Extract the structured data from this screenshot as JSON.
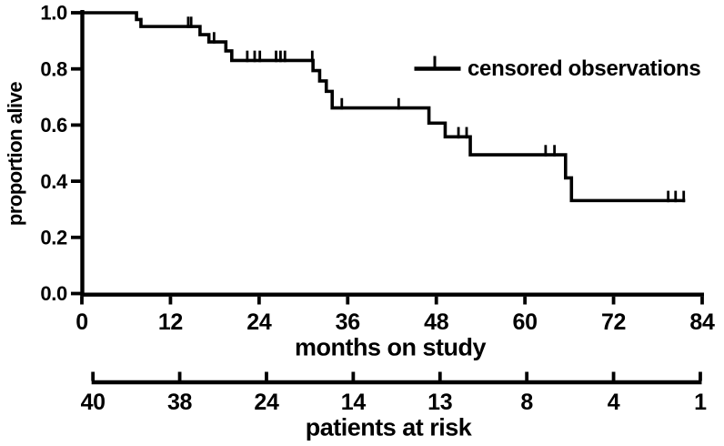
{
  "figure": {
    "background": "#ffffff",
    "ink_color": "#000000"
  },
  "chart_data": {
    "type": "line",
    "subtype": "kaplan-meier-step-curve",
    "title": "",
    "xlabel": "months on study",
    "ylabel": "proportion alive",
    "xlim": [
      0,
      84
    ],
    "ylim": [
      0.0,
      1.0
    ],
    "xticks": [
      0,
      12,
      24,
      36,
      48,
      60,
      72,
      84
    ],
    "yticks": [
      1.0,
      0.8,
      0.6,
      0.4,
      0.2,
      0.0
    ],
    "grid": false,
    "legend": {
      "position": "upper-right",
      "items": [
        {
          "label": "censored observations",
          "symbol": "censor-tick"
        }
      ]
    },
    "series": [
      {
        "name": "proportion alive",
        "color": "#000000",
        "start": [
          0,
          1.0
        ],
        "steps": [
          [
            7.4,
            0.976
          ],
          [
            8.0,
            0.951
          ],
          [
            16.0,
            0.922
          ],
          [
            17.2,
            0.896
          ],
          [
            19.5,
            0.864
          ],
          [
            20.3,
            0.83
          ],
          [
            31.3,
            0.794
          ],
          [
            32.2,
            0.757
          ],
          [
            33.1,
            0.72
          ],
          [
            33.9,
            0.661
          ],
          [
            47.0,
            0.607
          ],
          [
            49.2,
            0.558
          ],
          [
            52.6,
            0.494
          ],
          [
            65.5,
            0.412
          ],
          [
            66.3,
            0.331
          ]
        ],
        "end_month": 81.7
      }
    ],
    "censored_observations": [
      [
        14.4,
        0.951
      ],
      [
        14.8,
        0.951
      ],
      [
        17.9,
        0.896
      ],
      [
        22.4,
        0.83
      ],
      [
        23.4,
        0.83
      ],
      [
        24.1,
        0.83
      ],
      [
        26.3,
        0.83
      ],
      [
        26.9,
        0.83
      ],
      [
        27.5,
        0.83
      ],
      [
        31.2,
        0.83
      ],
      [
        35.2,
        0.661
      ],
      [
        42.9,
        0.661
      ],
      [
        51.0,
        0.558
      ],
      [
        52.1,
        0.558
      ],
      [
        62.8,
        0.494
      ],
      [
        64.0,
        0.494
      ],
      [
        79.4,
        0.331
      ],
      [
        80.4,
        0.331
      ],
      [
        81.5,
        0.331
      ]
    ],
    "at_risk": {
      "label": "patients at risk",
      "counts": [
        40,
        38,
        24,
        14,
        13,
        8,
        4,
        1
      ],
      "tick_months": [
        1.5,
        13.25,
        25.0,
        36.75,
        48.5,
        60.25,
        72.0,
        83.75
      ]
    }
  }
}
